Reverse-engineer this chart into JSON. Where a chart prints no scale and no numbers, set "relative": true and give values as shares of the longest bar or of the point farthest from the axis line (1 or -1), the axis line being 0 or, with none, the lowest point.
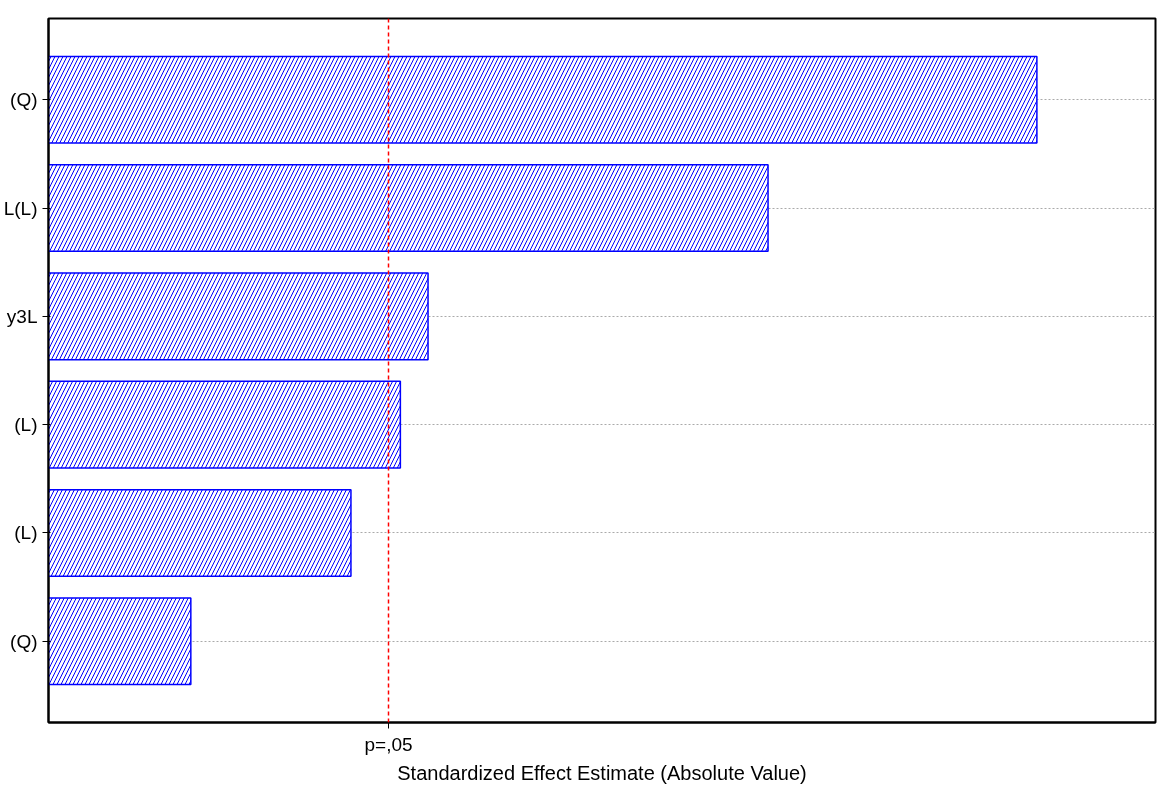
{
  "chart_data": {
    "type": "bar",
    "orientation": "horizontal",
    "relative": true,
    "categories": [
      "(Q)",
      "L(L)",
      "y3L",
      "(L)",
      "(L)",
      "(Q)"
    ],
    "values": [
      1,
      0.728,
      0.384,
      0.356,
      0.306,
      0.144
    ],
    "color": "#0000ff",
    "xlabel": "Standardized Effect Estimate (Absolute Value)",
    "ref_lines": [
      {
        "axis": "x",
        "value": 0.344,
        "label": "p=,05",
        "color": "#ff0000",
        "line_style": "dashed"
      }
    ],
    "grid": "y"
  }
}
